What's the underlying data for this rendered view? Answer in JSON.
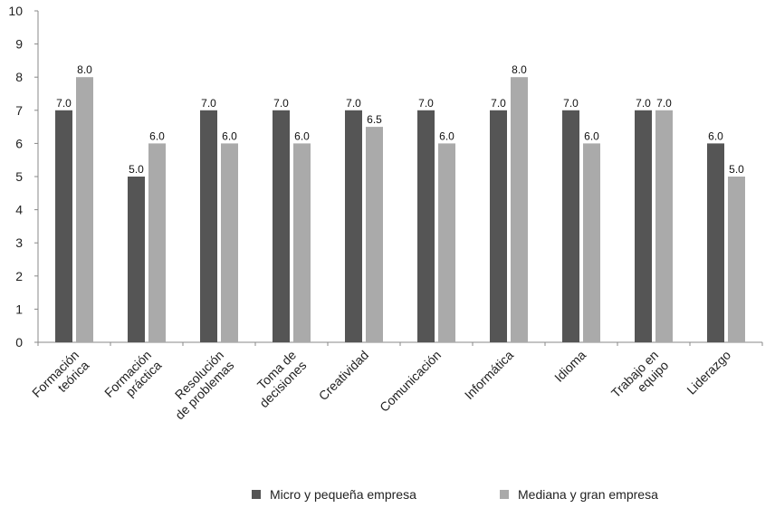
{
  "chart_data": {
    "type": "bar",
    "categories": [
      [
        "Formación",
        "teórica"
      ],
      [
        "Formación",
        "práctica"
      ],
      [
        "Resolución",
        "de problemas"
      ],
      [
        "Toma de",
        "decisiones"
      ],
      [
        "Creatividad"
      ],
      [
        "Comunicación"
      ],
      [
        "Informática"
      ],
      [
        "Idioma"
      ],
      [
        "Trabajo en",
        "equipo"
      ],
      [
        "Liderazgo"
      ]
    ],
    "series": [
      {
        "name": "Micro y pequeña empresa",
        "color": "#555555",
        "values": [
          7.0,
          5.0,
          7.0,
          7.0,
          7.0,
          7.0,
          7.0,
          7.0,
          7.0,
          6.0
        ],
        "labels": [
          "7.0",
          "5.0",
          "7.0",
          "7.0",
          "7.0",
          "7.0",
          "7.0",
          "7.0",
          "7.0",
          "6.0"
        ]
      },
      {
        "name": "Mediana y gran empresa",
        "color": "#aaaaaa",
        "values": [
          8.0,
          6.0,
          6.0,
          6.0,
          6.5,
          6.0,
          8.0,
          6.0,
          7.0,
          5.0
        ],
        "labels": [
          "8.0",
          "6.0",
          "6.0",
          "6.0",
          "6.5",
          "6.0",
          "8.0",
          "6.0",
          "7.0",
          "5.0"
        ]
      }
    ],
    "yticks": [
      "0",
      "1",
      "2",
      "3",
      "4",
      "5",
      "6",
      "7",
      "8",
      "9",
      "10"
    ],
    "ylim": [
      0,
      10
    ],
    "title": "",
    "xlabel": "",
    "ylabel": "",
    "legend_position": "bottom",
    "grid": false
  }
}
